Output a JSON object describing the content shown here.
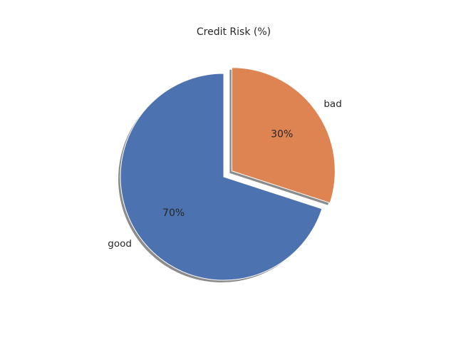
{
  "chart_data": {
    "type": "pie",
    "title": "Credit Risk (%)",
    "categories": [
      "good",
      "bad"
    ],
    "values": [
      70,
      30
    ],
    "value_labels": [
      "70%",
      "30%"
    ],
    "colors": [
      "#4C72B0",
      "#DD8452"
    ],
    "exploded": [
      "bad"
    ],
    "shadow": true,
    "legend": "none"
  }
}
